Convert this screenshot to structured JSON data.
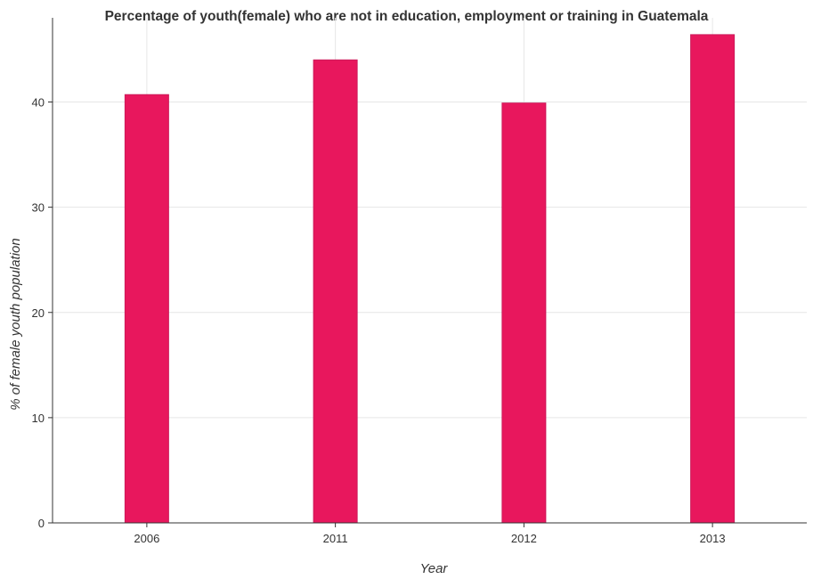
{
  "chart_data": {
    "type": "bar",
    "title": "Percentage of youth(female) who are not in education, employment or training in Guatemala",
    "xlabel": "Year",
    "ylabel": "% of female youth population",
    "categories": [
      "2006",
      "2011",
      "2012",
      "2013"
    ],
    "values": [
      40.7,
      44.0,
      39.9,
      46.4
    ],
    "ylim": [
      0,
      48
    ],
    "yticks": [
      0,
      10,
      20,
      30,
      40
    ],
    "grid": true,
    "bar_color": "#e8175d",
    "bar_edge_color": "#cc1a5a"
  }
}
